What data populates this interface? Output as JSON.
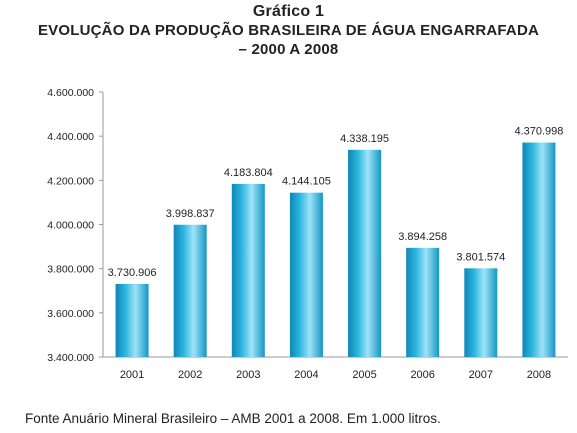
{
  "title": {
    "line1": "Gráfico 1",
    "line2": "EVOLUÇÃO DA PRODUÇÃO BRASILEIRA DE ÁGUA ENGARRAFADA",
    "line3": "– 2000 A 2008"
  },
  "source": "Fonte Anuário Mineral Brasileiro – AMB 2001 a 2008. Em 1.000 litros.",
  "colors": {
    "bar_light": "#9fe3f7",
    "bar_mid": "#2cb6e0",
    "bar_dark": "#0f86b6",
    "axis": "#9a9a9a"
  },
  "chart_data": {
    "type": "bar",
    "title": "EVOLUÇÃO DA PRODUÇÃO BRASILEIRA DE ÁGUA ENGARRAFADA – 2000 A 2008",
    "xlabel": "",
    "ylabel": "",
    "categories": [
      "2001",
      "2002",
      "2003",
      "2004",
      "2005",
      "2006",
      "2007",
      "2008"
    ],
    "values": [
      3730906,
      3998837,
      4183804,
      4144105,
      4338195,
      3894258,
      3801574,
      4370998
    ],
    "value_labels": [
      "3.730.906",
      "3.998.837",
      "4.183.804",
      "4.144.105",
      "4.338.195",
      "3.894.258",
      "3.801.574",
      "4.370.998"
    ],
    "ylim": [
      3400000,
      4600000
    ],
    "yticks": [
      3400000,
      3600000,
      3800000,
      4000000,
      4200000,
      4400000,
      4600000
    ],
    "ytick_labels": [
      "3.400.000",
      "3.600.000",
      "3.800.000",
      "4.000.000",
      "4.200.000",
      "4.400.000",
      "4.600.000"
    ],
    "grid": false,
    "legend": "none"
  }
}
